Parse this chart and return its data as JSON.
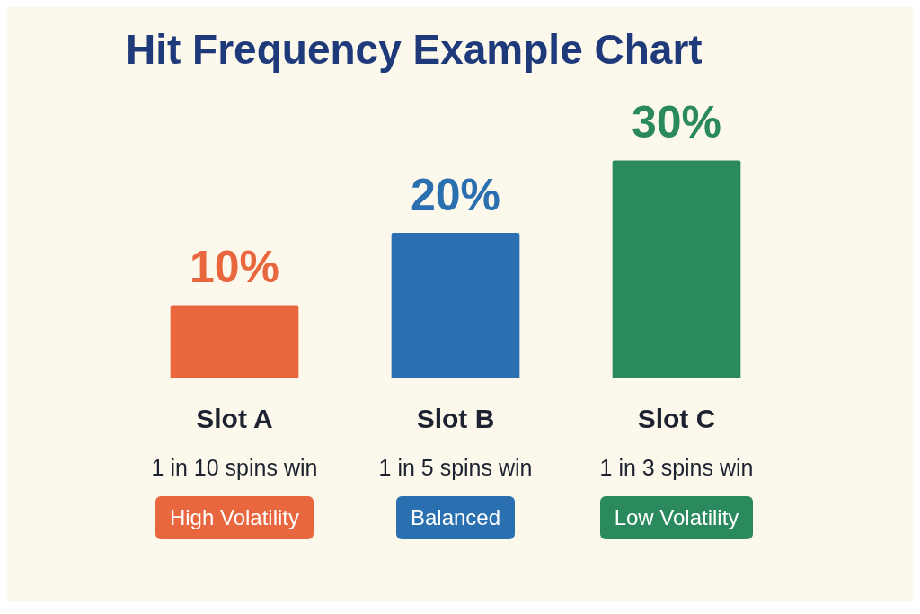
{
  "chart_data": {
    "type": "bar",
    "title": "Hit Frequency Example Chart",
    "categories": [
      "Slot A",
      "Slot B",
      "Slot C"
    ],
    "values": [
      10,
      20,
      30
    ],
    "colors": [
      "#e8673f",
      "#2a6faf",
      "#2a8a5e"
    ],
    "value_labels": [
      "10%",
      "20%",
      "30%"
    ],
    "legend": false,
    "annotations": [
      "1 in 10 spins win",
      "High Volatility",
      "1 in 5 spins win",
      "Balanced",
      "1 in 3 spins win",
      "Low Volatility"
    ]
  }
}
